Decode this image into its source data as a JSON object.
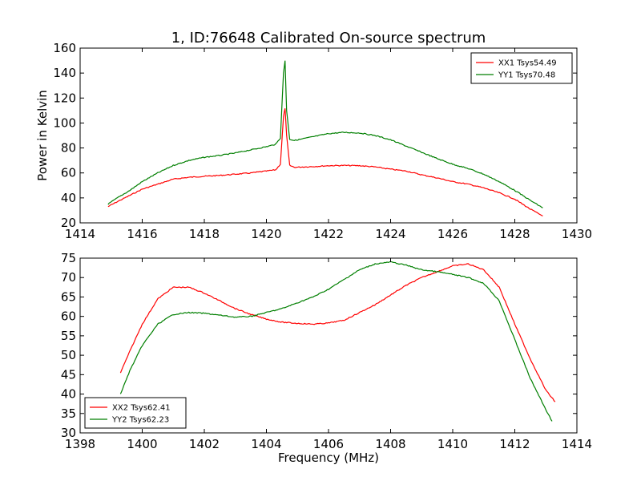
{
  "title": "1, ID:76648 Calibrated On-source spectrum",
  "colors": {
    "red": "#ff0000",
    "green": "#007f00"
  },
  "chart_data": [
    {
      "type": "line",
      "xlabel": "",
      "ylabel": "Power in Kelvin",
      "xlim": [
        1414,
        1430
      ],
      "ylim": [
        20,
        160
      ],
      "xticks": [
        1414,
        1416,
        1418,
        1420,
        1422,
        1424,
        1426,
        1428,
        1430
      ],
      "yticks": [
        20,
        40,
        60,
        80,
        100,
        120,
        140,
        160
      ],
      "legend": "top-right",
      "grid": false,
      "series": [
        {
          "name": "XX1 Tsys54.49",
          "color": "#ff0000",
          "x": [
            1414.9,
            1415.2,
            1415.6,
            1416.0,
            1416.5,
            1417.0,
            1417.5,
            1418.0,
            1418.5,
            1419.0,
            1419.5,
            1420.0,
            1420.3,
            1420.45,
            1420.55,
            1420.6,
            1420.65,
            1420.75,
            1420.9,
            1421.2,
            1421.6,
            1422.0,
            1422.5,
            1423.0,
            1423.5,
            1424.0,
            1424.5,
            1425.0,
            1425.5,
            1426.0,
            1426.5,
            1427.0,
            1427.5,
            1428.0,
            1428.5,
            1428.9
          ],
          "values": [
            33,
            37,
            42,
            47,
            51,
            55,
            56.5,
            57.3,
            58,
            59,
            60,
            61.5,
            62.5,
            67,
            105,
            112,
            90,
            66,
            64.5,
            64.8,
            65.2,
            65.8,
            66,
            65.8,
            64.8,
            63,
            61.5,
            58.5,
            56,
            53,
            51,
            48,
            44,
            39,
            31,
            25.5
          ]
        },
        {
          "name": "YY1 Tsys70.48",
          "color": "#007f00",
          "x": [
            1414.9,
            1415.2,
            1415.6,
            1416.0,
            1416.5,
            1417.0,
            1417.5,
            1418.0,
            1418.5,
            1419.0,
            1419.5,
            1420.0,
            1420.3,
            1420.45,
            1420.55,
            1420.6,
            1420.65,
            1420.75,
            1420.9,
            1421.2,
            1421.6,
            1422.0,
            1422.5,
            1423.0,
            1423.5,
            1424.0,
            1424.5,
            1425.0,
            1425.5,
            1426.0,
            1426.5,
            1427.0,
            1427.5,
            1428.0,
            1428.5,
            1428.9
          ],
          "values": [
            35,
            40,
            46,
            53,
            60,
            66,
            70,
            72.5,
            74,
            76,
            78.5,
            81,
            83,
            88,
            140,
            150,
            110,
            87,
            86,
            87.5,
            89.5,
            91.5,
            92.5,
            92,
            90,
            86.5,
            81.5,
            76.5,
            71.5,
            67,
            63.5,
            59,
            53,
            46,
            38,
            32
          ]
        }
      ]
    },
    {
      "type": "line",
      "xlabel": "Frequency (MHz)",
      "ylabel": "",
      "xlim": [
        1398,
        1414
      ],
      "ylim": [
        30,
        75
      ],
      "xticks": [
        1398,
        1400,
        1402,
        1404,
        1406,
        1408,
        1410,
        1412,
        1414
      ],
      "yticks": [
        30,
        35,
        40,
        45,
        50,
        55,
        60,
        65,
        70,
        75
      ],
      "legend": "bottom-left",
      "grid": false,
      "series": [
        {
          "name": "XX2 Tsys62.41",
          "color": "#ff0000",
          "x": [
            1399.3,
            1399.6,
            1400.0,
            1400.5,
            1401.0,
            1401.5,
            1402.0,
            1402.5,
            1403.0,
            1403.5,
            1404.0,
            1404.5,
            1405.0,
            1405.5,
            1406.0,
            1406.5,
            1407.0,
            1407.5,
            1408.0,
            1408.5,
            1409.0,
            1409.5,
            1410.0,
            1410.5,
            1411.0,
            1411.5,
            1412.0,
            1412.5,
            1413.0,
            1413.3
          ],
          "values": [
            45.5,
            51,
            58,
            64.5,
            67.5,
            67.5,
            66,
            64,
            62,
            60.5,
            59.3,
            58.5,
            58.2,
            58,
            58.3,
            59,
            61,
            63,
            65.5,
            68,
            70,
            71.5,
            73,
            73.5,
            72,
            67.5,
            58,
            49,
            41,
            38
          ]
        },
        {
          "name": "YY2 Tsys62.23",
          "color": "#007f00",
          "x": [
            1399.3,
            1399.6,
            1400.0,
            1400.5,
            1401.0,
            1401.5,
            1402.0,
            1402.5,
            1403.0,
            1403.5,
            1404.0,
            1404.5,
            1405.0,
            1405.5,
            1406.0,
            1406.5,
            1407.0,
            1407.5,
            1408.0,
            1408.5,
            1409.0,
            1409.5,
            1410.0,
            1410.5,
            1411.0,
            1411.5,
            1412.0,
            1412.5,
            1413.0,
            1413.2
          ],
          "values": [
            40,
            46,
            52.5,
            58,
            60.5,
            61,
            60.8,
            60.3,
            59.8,
            60,
            61,
            62,
            63.5,
            65,
            67,
            69.5,
            72,
            73.5,
            74,
            73.2,
            72,
            71.5,
            70.8,
            70,
            68.5,
            64,
            54,
            44,
            36,
            33
          ]
        }
      ]
    }
  ]
}
